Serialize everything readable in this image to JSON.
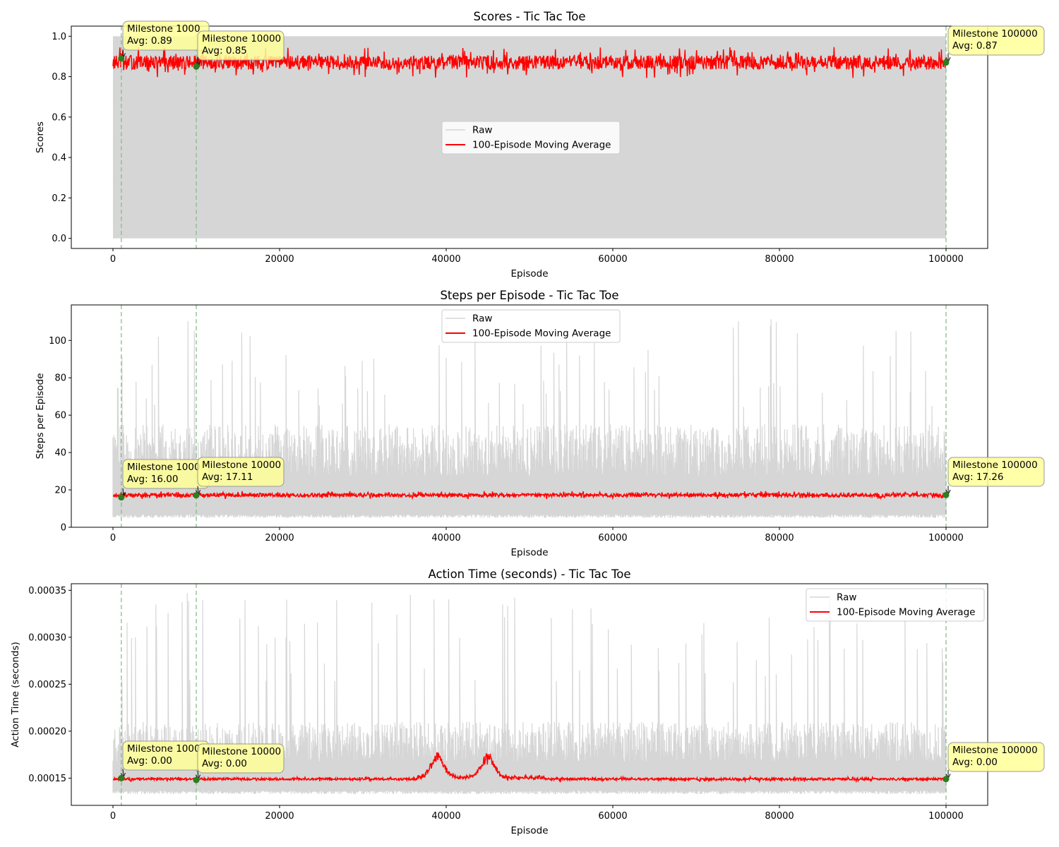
{
  "figure": {
    "background": "#ffffff"
  },
  "styles": {
    "raw_color": "#d6d6d6",
    "avg_color": "#ff0000",
    "milestone_line_color": "#88bb88",
    "milestone_dot_color": "#2e7d1f",
    "annotation_fill": "#ffff99"
  },
  "chart_data": [
    {
      "type": "line",
      "title": "Scores - Tic Tac Toe",
      "xlabel": "Episode",
      "ylabel": "Scores",
      "xlim": [
        -5000,
        105000
      ],
      "ylim": [
        -0.05,
        1.05
      ],
      "xticks": [
        0,
        20000,
        40000,
        60000,
        80000,
        100000
      ],
      "xtick_labels": [
        "0",
        "20000",
        "40000",
        "60000",
        "80000",
        "100000"
      ],
      "yticks": [
        0.0,
        0.2,
        0.4,
        0.6,
        0.8,
        1.0
      ],
      "ytick_labels": [
        "0.0",
        "0.2",
        "0.4",
        "0.6",
        "0.8",
        "1.0"
      ],
      "grid": false,
      "legend": {
        "position": "center",
        "entries": [
          "Raw",
          "100-Episode Moving Average"
        ]
      },
      "series": [
        {
          "name": "Raw",
          "x_range": [
            0,
            100000
          ],
          "description_values": {
            "min": 0.0,
            "max": 1.0,
            "band": [
              0.0,
              1.0
            ]
          }
        },
        {
          "name": "100-Episode Moving Average",
          "x_range": [
            0,
            100000
          ],
          "mean": 0.87,
          "spread": 0.035,
          "lo": 0.73,
          "hi": 0.98
        }
      ],
      "milestones": [
        {
          "episode": 1000,
          "label": "Milestone 1000",
          "avg_text": "Avg: 0.89",
          "value": 0.89
        },
        {
          "episode": 10000,
          "label": "Milestone 10000",
          "avg_text": "Avg: 0.85",
          "value": 0.85
        },
        {
          "episode": 100000,
          "label": "Milestone 100000",
          "avg_text": "Avg: 0.87",
          "value": 0.87
        }
      ]
    },
    {
      "type": "line",
      "title": "Steps per Episode - Tic Tac Toe",
      "xlabel": "Episode",
      "ylabel": "Steps per Episode",
      "xlim": [
        -5000,
        105000
      ],
      "ylim": [
        0,
        119
      ],
      "xticks": [
        0,
        20000,
        40000,
        60000,
        80000,
        100000
      ],
      "xtick_labels": [
        "0",
        "20000",
        "40000",
        "60000",
        "80000",
        "100000"
      ],
      "yticks": [
        0,
        20,
        40,
        60,
        80,
        100
      ],
      "ytick_labels": [
        "0",
        "20",
        "40",
        "60",
        "80",
        "100"
      ],
      "grid": false,
      "legend": {
        "position": "upper center",
        "entries": [
          "Raw",
          "100-Episode Moving Average"
        ]
      },
      "series": [
        {
          "name": "Raw",
          "x_range": [
            0,
            100000
          ],
          "floor": 5,
          "typical_max": 55,
          "peak": 113
        },
        {
          "name": "100-Episode Moving Average",
          "x_range": [
            0,
            100000
          ],
          "mean": 17.2,
          "spread": 1.0,
          "lo": 14,
          "hi": 20
        }
      ],
      "milestones": [
        {
          "episode": 1000,
          "label": "Milestone 1000",
          "avg_text": "Avg: 16.00",
          "value": 16.0
        },
        {
          "episode": 10000,
          "label": "Milestone 10000",
          "avg_text": "Avg: 17.11",
          "value": 17.11
        },
        {
          "episode": 100000,
          "label": "Milestone 100000",
          "avg_text": "Avg: 17.26",
          "value": 17.26
        }
      ]
    },
    {
      "type": "line",
      "title": "Action Time (seconds) - Tic Tac Toe",
      "xlabel": "Episode",
      "ylabel": "Action Time (seconds)",
      "xlim": [
        -5000,
        105000
      ],
      "ylim": [
        0.000121,
        0.000357
      ],
      "xticks": [
        0,
        20000,
        40000,
        60000,
        80000,
        100000
      ],
      "xtick_labels": [
        "0",
        "20000",
        "40000",
        "60000",
        "80000",
        "100000"
      ],
      "yticks": [
        0.00015,
        0.0002,
        0.00025,
        0.0003,
        0.00035
      ],
      "ytick_labels": [
        "0.00015",
        "0.00020",
        "0.00025",
        "0.00030",
        "0.00035"
      ],
      "grid": false,
      "legend": {
        "position": "upper right",
        "entries": [
          "Raw",
          "100-Episode Moving Average"
        ]
      },
      "series": [
        {
          "name": "Raw",
          "x_range": [
            0,
            100000
          ],
          "floor": 0.000133,
          "typical_max": 0.00021,
          "peak": 0.000348
        },
        {
          "name": "100-Episode Moving Average",
          "x_range": [
            0,
            100000
          ],
          "mean": 0.000149,
          "spread": 1.2e-06,
          "bump_episodes": [
            39000,
            45000
          ],
          "bump_peak": 0.000175
        }
      ],
      "milestones": [
        {
          "episode": 1000,
          "label": "Milestone 1000",
          "avg_text": "Avg: 0.00",
          "value": 0.00015
        },
        {
          "episode": 10000,
          "label": "Milestone 10000",
          "avg_text": "Avg: 0.00",
          "value": 0.000148
        },
        {
          "episode": 100000,
          "label": "Milestone 100000",
          "avg_text": "Avg: 0.00",
          "value": 0.000149
        }
      ]
    }
  ]
}
